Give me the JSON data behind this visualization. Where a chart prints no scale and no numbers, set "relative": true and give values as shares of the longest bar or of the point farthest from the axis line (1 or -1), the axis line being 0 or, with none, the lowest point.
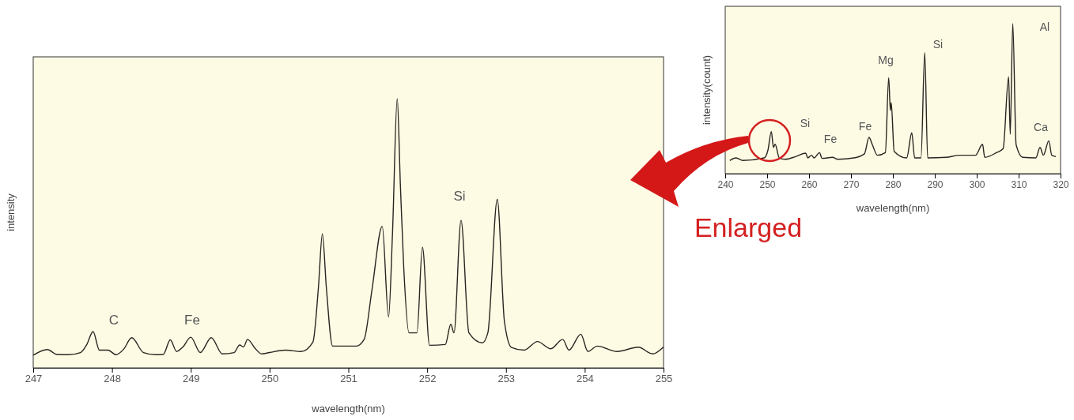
{
  "chart_data": [
    {
      "type": "line",
      "relative": true,
      "xlabel": "wavelength(nm)",
      "ylabel": "intensity",
      "xlim": [
        247,
        255
      ],
      "xticks": [
        247,
        248,
        249,
        250,
        251,
        252,
        253,
        254,
        255
      ],
      "grid": false,
      "series": [
        {
          "color": "#2a2520",
          "x": [
            247.0,
            247.18,
            247.3,
            247.45,
            247.6,
            247.68,
            247.76,
            247.84,
            247.95,
            248.05,
            248.15,
            248.25,
            248.4,
            248.55,
            248.65,
            248.74,
            248.82,
            248.9,
            249.0,
            249.12,
            249.26,
            249.4,
            249.55,
            249.62,
            249.67,
            249.72,
            249.82,
            249.9,
            250.0,
            250.2,
            250.4,
            250.55,
            250.62,
            250.67,
            250.72,
            250.8,
            250.96,
            251.1,
            251.2,
            251.3,
            251.43,
            251.51,
            251.56,
            251.62,
            251.66,
            251.7,
            251.77,
            251.87,
            251.94,
            252.03,
            252.23,
            252.3,
            252.34,
            252.43,
            252.53,
            252.7,
            252.77,
            252.89,
            252.98,
            253.07,
            253.23,
            253.4,
            253.57,
            253.72,
            253.8,
            253.95,
            254.04,
            254.16,
            254.41,
            254.68,
            254.86,
            255.0
          ],
          "values": [
            0.047,
            0.068,
            0.05,
            0.049,
            0.057,
            0.087,
            0.135,
            0.066,
            0.066,
            0.049,
            0.07,
            0.112,
            0.057,
            0.049,
            0.05,
            0.104,
            0.061,
            0.078,
            0.114,
            0.057,
            0.112,
            0.052,
            0.057,
            0.085,
            0.078,
            0.106,
            0.071,
            0.052,
            0.057,
            0.066,
            0.061,
            0.096,
            0.3,
            0.498,
            0.3,
            0.081,
            0.081,
            0.081,
            0.106,
            0.291,
            0.526,
            0.189,
            0.5,
            1,
            0.68,
            0.39,
            0.13,
            0.13,
            0.448,
            0.084,
            0.087,
            0.162,
            0.13,
            0.548,
            0.13,
            0.093,
            0.13,
            0.626,
            0.174,
            0.076,
            0.066,
            0.098,
            0.071,
            0.106,
            0.066,
            0.125,
            0.061,
            0.081,
            0.061,
            0.077,
            0.052,
            0.078
          ]
        }
      ],
      "annotations": [
        "C",
        "Fe",
        "Si"
      ]
    },
    {
      "type": "line",
      "relative": true,
      "xlabel": "wavelength(nm)",
      "ylabel": "intensity(count)",
      "xlim": [
        240,
        320
      ],
      "xticks": [
        240,
        250,
        260,
        270,
        280,
        290,
        300,
        310,
        320
      ],
      "grid": false,
      "series": [
        {
          "color": "#2a2520",
          "x": [
            241.1,
            242.6,
            244.2,
            249.3,
            250.2,
            251.0,
            251.5,
            251.9,
            252.9,
            254.3,
            256.8,
            259.2,
            259.7,
            260.6,
            261.2,
            262.5,
            263.1,
            265.6,
            266.9,
            270.7,
            273.2,
            274.3,
            275.1,
            276.3,
            278.2,
            279.0,
            279.4,
            279.6,
            280.3,
            283.3,
            284.5,
            285.2,
            286.7,
            287.6,
            288.3,
            292.7,
            295.9,
            299.7,
            301.4,
            301.9,
            304.7,
            306.3,
            307.6,
            308.0,
            308.6,
            309.4,
            311.0,
            314.1,
            315.1,
            315.9,
            317.2,
            317.9,
            318.9
          ],
          "values": [
            0.088,
            0.105,
            0.088,
            0.105,
            0.158,
            0.281,
            0.175,
            0.196,
            0.105,
            0.096,
            0.114,
            0.137,
            0.105,
            0.123,
            0.105,
            0.14,
            0.102,
            0.109,
            0.096,
            0.105,
            0.132,
            0.242,
            0.193,
            0.123,
            0.14,
            0.64,
            0.421,
            0.474,
            0.149,
            0.105,
            0.272,
            0.105,
            0.105,
            0.807,
            0.105,
            0.109,
            0.123,
            0.123,
            0.196,
            0.109,
            0.14,
            0.167,
            0.646,
            0.263,
            1,
            0.193,
            0.109,
            0.105,
            0.175,
            0.123,
            0.219,
            0.123,
            0.114
          ]
        }
      ],
      "annotations": [
        "Si",
        "Fe",
        "Fe",
        "Mg",
        "Si",
        "Al",
        "Ca",
        "Enlarged"
      ]
    }
  ]
}
